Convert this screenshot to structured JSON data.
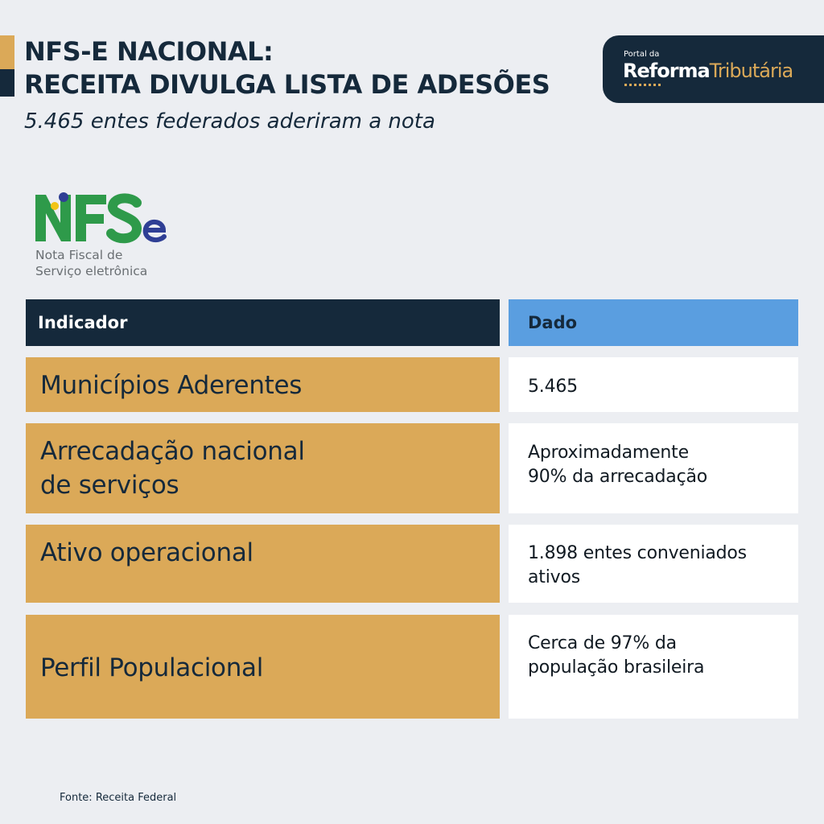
{
  "header": {
    "title_line1": "NFS-E NACIONAL:",
    "title_line2": "RECEITA DIVULGA LISTA DE ADESÕES",
    "subtitle": "5.465 entes federados aderiram a nota"
  },
  "portal": {
    "small": "Portal da",
    "word1": "Reforma",
    "word2": "Tributária"
  },
  "nfse_logo": {
    "wordmark": "NFSe",
    "caption_line1": "Nota Fiscal de",
    "caption_line2": "Serviço eletrônica",
    "colors": {
      "n": "#2e9a4a",
      "f": "#2e9a4a",
      "s": "#2e9a4a",
      "e": "#2f3f95",
      "dot_blue": "#2f3f95",
      "dot_yellow": "#f2c417"
    }
  },
  "table": {
    "headers": {
      "indicator": "Indicador",
      "data": "Dado"
    },
    "rows": [
      {
        "indicator": [
          "Municípios Aderentes"
        ],
        "value": [
          "5.465"
        ]
      },
      {
        "indicator": [
          "Arrecadação nacional",
          "de serviços"
        ],
        "value": [
          "Aproximadamente",
          "90% da arrecadação"
        ]
      },
      {
        "indicator": [
          "Ativo operacional"
        ],
        "value": [
          "1.898 entes conveniados",
          "ativos"
        ]
      },
      {
        "indicator": [
          "Perfil Populacional"
        ],
        "value": [
          "Cerca de 97% da",
          "população brasileira"
        ]
      }
    ]
  },
  "footer": {
    "source": "Fonte: Receita Federal"
  },
  "colors": {
    "navy": "#15293b",
    "gold": "#dba958",
    "blue": "#5a9ee0",
    "background": "#eceef2"
  }
}
